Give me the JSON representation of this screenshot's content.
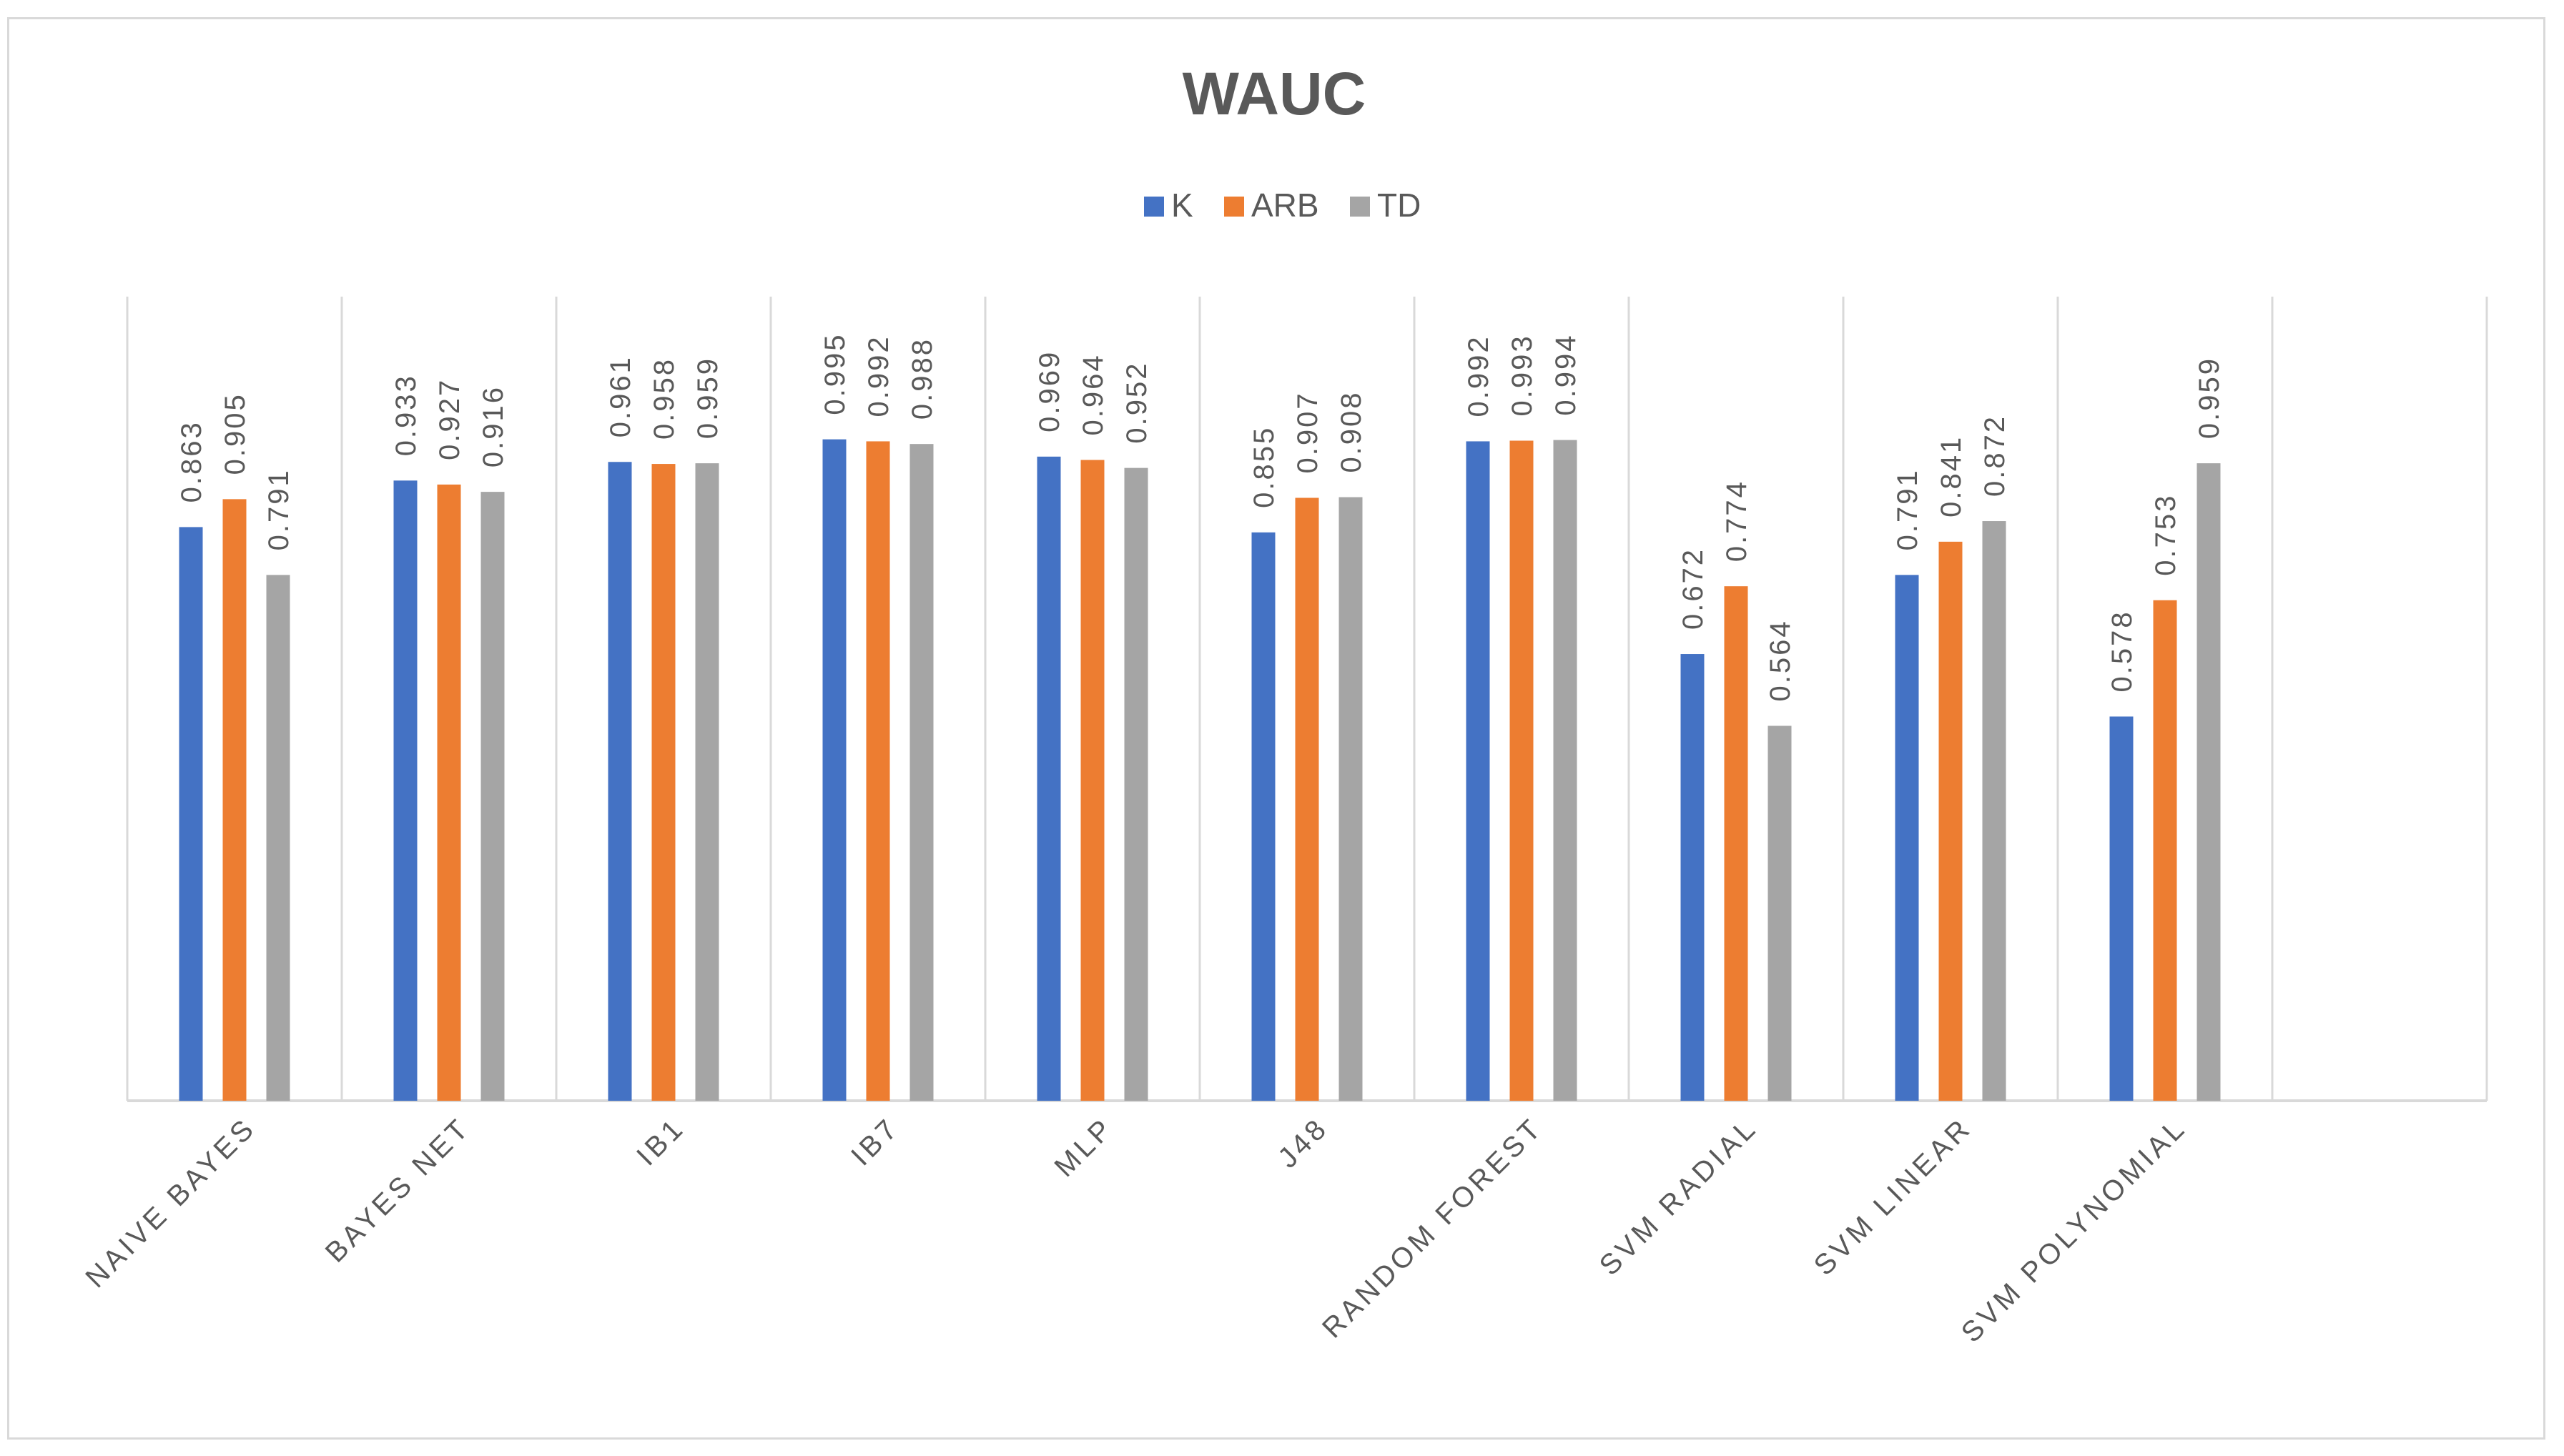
{
  "chart_data": {
    "type": "bar",
    "title": "WAUC",
    "categories": [
      "NAIVE BAYES",
      "BAYES NET",
      "IB1",
      "IB7",
      "MLP",
      "J48",
      "RANDOM FOREST",
      "SVM RADIAL",
      "SVM LINEAR",
      "SVM POLYNOMIAL"
    ],
    "series": [
      {
        "name": "K",
        "color": "#4472c4",
        "values": [
          0.863,
          0.933,
          0.961,
          0.995,
          0.969,
          0.855,
          0.992,
          0.672,
          0.791,
          0.578
        ]
      },
      {
        "name": "ARB",
        "color": "#ed7d31",
        "values": [
          0.905,
          0.927,
          0.958,
          0.992,
          0.964,
          0.907,
          0.993,
          0.774,
          0.841,
          0.753
        ]
      },
      {
        "name": "TD",
        "color": "#a5a5a5",
        "values": [
          0.791,
          0.916,
          0.959,
          0.988,
          0.952,
          0.908,
          0.994,
          0.564,
          0.872,
          0.959
        ]
      }
    ],
    "value_labels": [
      [
        "0.863",
        "0.933",
        "0.961",
        "0.995",
        "0.969",
        "0.855",
        "0.992",
        "0.672",
        "0.791",
        "0.578"
      ],
      [
        "0.905",
        "0.927",
        "0.958",
        "0.992",
        "0.964",
        "0.907",
        "0.993",
        "0.774",
        "0.841",
        "0.753"
      ],
      [
        "0.791",
        "0.916",
        "0.959",
        "0.988",
        "0.952",
        "0.908",
        "0.994",
        "0.564",
        "0.872",
        "0.959"
      ]
    ],
    "legend_position": "top-center",
    "grid": "vertical category separators",
    "data_labels": "rotated vertical, above bars"
  }
}
